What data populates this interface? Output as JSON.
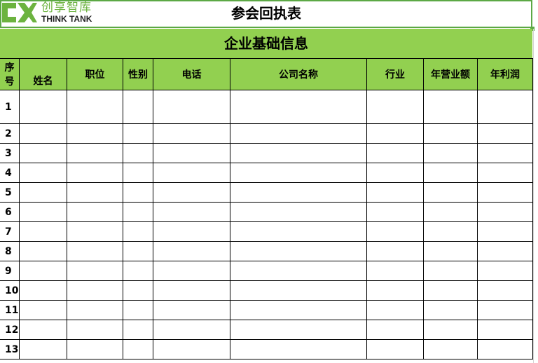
{
  "logo": {
    "cn": "创享智库",
    "en": "THINK TANK",
    "color": "#6cb33f"
  },
  "title": "参会回执表",
  "section": "企业基础信息",
  "headers": [
    "序号",
    "姓名",
    "职位",
    "性别",
    "电话",
    "公司名称",
    "行业",
    "年营业额",
    "年利润"
  ],
  "rows": [
    "1",
    "2",
    "3",
    "4",
    "5",
    "6",
    "7",
    "8",
    "9",
    "10",
    "11",
    "12",
    "13"
  ],
  "colors": {
    "header_fill": "#92d050",
    "selection": "#5ca845"
  }
}
